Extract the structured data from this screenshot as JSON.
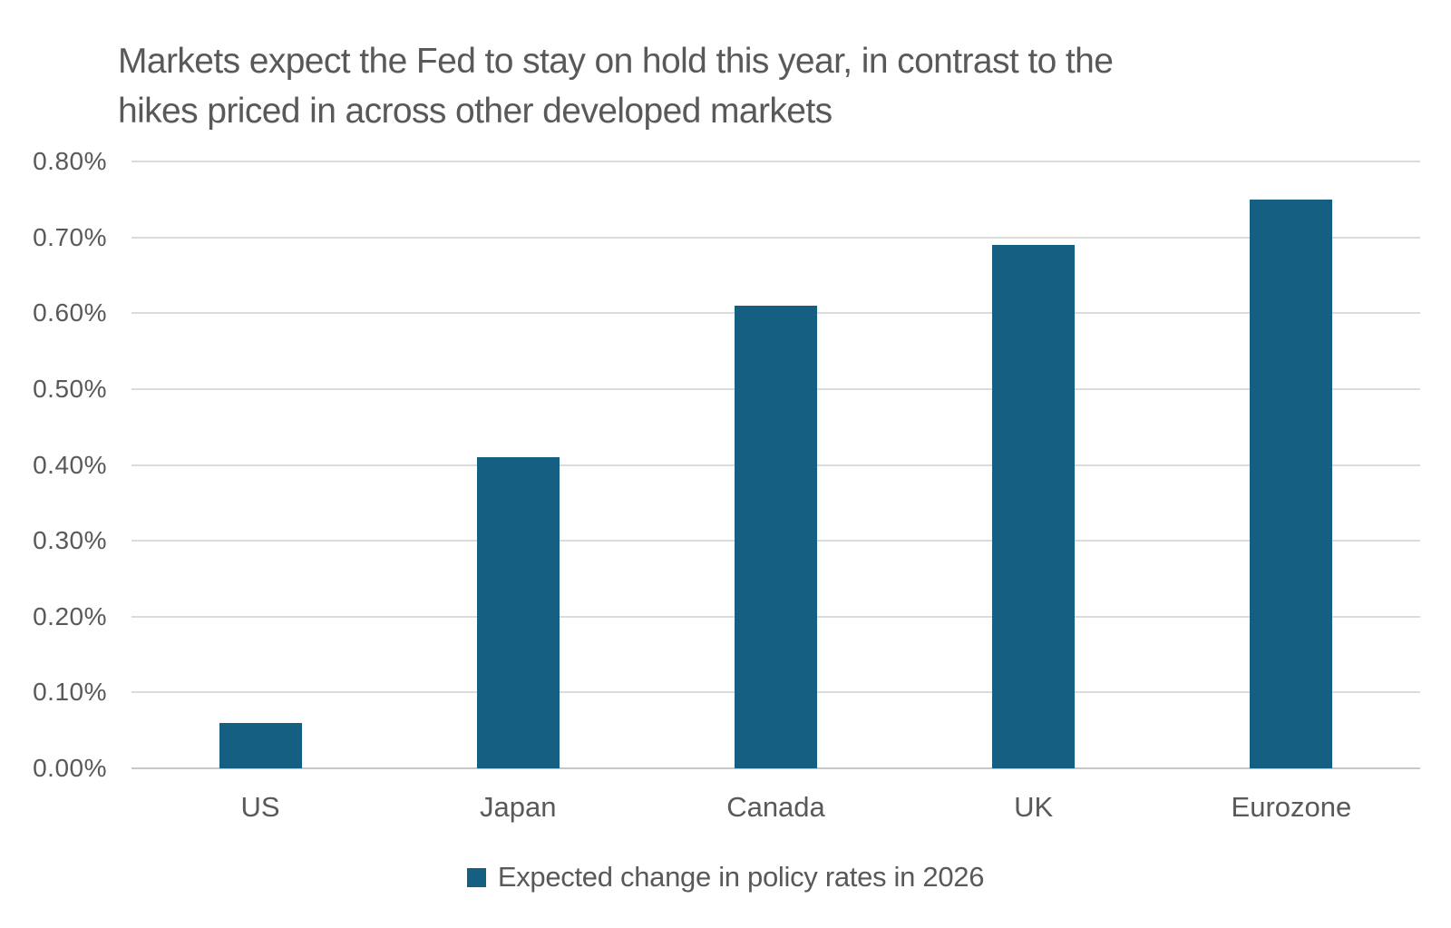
{
  "chart_data": {
    "type": "bar",
    "title": "Markets expect the Fed to stay on hold this year, in contrast to the hikes priced in across other developed markets",
    "title_lines": [
      "Markets expect the Fed to stay on hold this year, in contrast to the",
      "hikes priced in across other developed markets"
    ],
    "categories": [
      "US",
      "Japan",
      "Canada",
      "UK",
      "Eurozone"
    ],
    "series": [
      {
        "name": "Expected change in policy rates in 2026",
        "values": [
          0.06,
          0.41,
          0.61,
          0.69,
          0.75
        ]
      }
    ],
    "xlabel": "",
    "ylabel": "",
    "ylim": [
      0,
      0.8
    ],
    "y_tick_step": 0.1,
    "y_ticks": [
      "0.00%",
      "0.10%",
      "0.20%",
      "0.30%",
      "0.40%",
      "0.50%",
      "0.60%",
      "0.70%",
      "0.80%"
    ],
    "grid": true,
    "legend": {
      "label": "Expected change in policy rates in 2026",
      "position": "bottom"
    },
    "colors": {
      "bar": "#156082",
      "text": "#595959",
      "gridline": "#dbdbdb",
      "axis_line": "#c8c8c8",
      "background": "#ffffff"
    }
  }
}
